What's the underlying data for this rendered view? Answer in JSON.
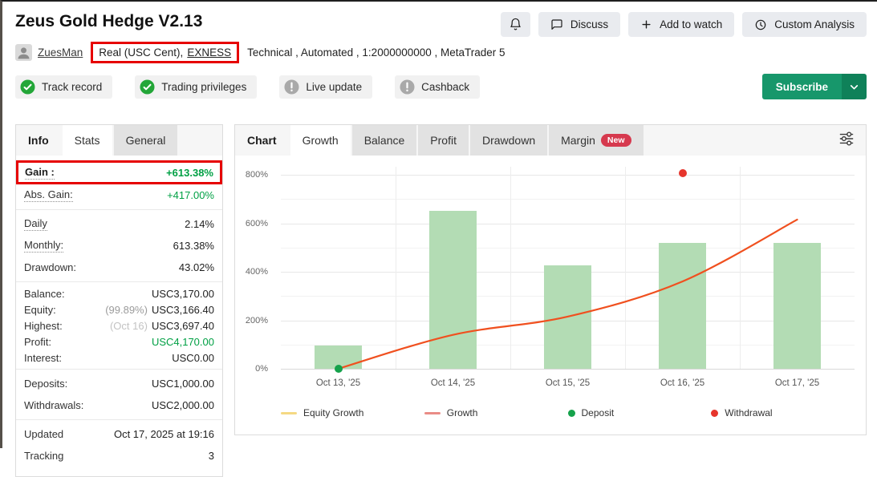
{
  "colors": {
    "positive": "#00a044",
    "highlight_red": "#e60000",
    "bar_fill": "#b3dcb4",
    "line_growth": "#f0501f",
    "legend_equity": "#f5d983",
    "legend_growth": "#e98c86",
    "deposit_dot": "#15a24b",
    "withdrawal_dot": "#e6352c",
    "badge_ok": "#23a638",
    "badge_na": "#a9a9a9",
    "subscribe_green": "#17976b",
    "subscribe_dark": "#0f8159"
  },
  "header": {
    "title": "Zeus Gold Hedge V2.13",
    "buttons": [
      {
        "label": "Discuss",
        "icon": "chat-bubble"
      },
      {
        "label": "Add to watch",
        "icon": "plus"
      },
      {
        "label": "Custom Analysis",
        "icon": "clock"
      }
    ],
    "user_name": "ZuesMan",
    "account_type": "Real (USC Cent),",
    "broker": "EXNESS",
    "meta_line": "Technical , Automated , 1:2000000000 , MetaTrader 5",
    "badges": [
      {
        "label": "Track record",
        "status": "verified"
      },
      {
        "label": "Trading privileges",
        "status": "verified"
      },
      {
        "label": "Live update",
        "status": "unavailable"
      },
      {
        "label": "Cashback",
        "status": "unavailable"
      }
    ],
    "subscribe": {
      "label": "Subscribe"
    }
  },
  "sidebar": {
    "tabs": [
      {
        "label": "Info",
        "style": "title"
      },
      {
        "label": "Stats",
        "active": true
      },
      {
        "label": "General",
        "active": false
      }
    ],
    "groups": [
      {
        "rows": [
          {
            "label": "Gain :",
            "value": "+613.38%",
            "bold": true,
            "dotted": true,
            "value_class": "pos-bold",
            "highlight": true
          },
          {
            "label": "Abs. Gain:",
            "value": "+417.00%",
            "dotted": true,
            "value_class": "pos"
          }
        ]
      },
      {
        "rows": [
          {
            "label": "Daily",
            "value": "2.14%",
            "dotted": true
          },
          {
            "label": "Monthly:",
            "value": "613.38%",
            "dotted": true
          },
          {
            "label": "Drawdown:",
            "value": "43.02%"
          }
        ]
      },
      {
        "compact": true,
        "rows": [
          {
            "label": "Balance:",
            "value": "USC3,170.00"
          },
          {
            "label": "Equity:",
            "prefix": "(99.89%)",
            "value": "USC3,166.40"
          },
          {
            "label": "Highest:",
            "prefix": "(Oct 16)",
            "prefix_light": true,
            "value": "USC3,697.40"
          },
          {
            "label": "Profit:",
            "value": "USC4,170.00",
            "value_class": "pos"
          },
          {
            "label": "Interest:",
            "value": "USC0.00"
          }
        ]
      },
      {
        "rows": [
          {
            "label": "Deposits:",
            "value": "USC1,000.00"
          },
          {
            "label": "Withdrawals:",
            "value": "USC2,000.00"
          }
        ]
      },
      {
        "rows": [
          {
            "label": "Updated",
            "value": "Oct 17, 2025 at 19:16"
          },
          {
            "label": "Tracking",
            "value": "3"
          }
        ]
      }
    ]
  },
  "chart_panel": {
    "tabs": [
      {
        "label": "Chart",
        "style": "title"
      },
      {
        "label": "Growth",
        "active": true
      },
      {
        "label": "Balance"
      },
      {
        "label": "Profit"
      },
      {
        "label": "Drawdown"
      },
      {
        "label": "Margin",
        "badge": "New"
      }
    ]
  },
  "chart_data": {
    "type": "bar+line",
    "title": "",
    "xlabel": "",
    "ylabel": "",
    "categories": [
      "Oct 13, '25",
      "Oct 14, '25",
      "Oct 15, '25",
      "Oct 16, '25",
      "Oct 17, '25"
    ],
    "bar_series": {
      "values": [
        95,
        650,
        425,
        520,
        520
      ],
      "color_key": "bar_fill"
    },
    "line_series": {
      "name": "Growth",
      "values": [
        0,
        140,
        215,
        360,
        615
      ],
      "color_key": "line_growth"
    },
    "markers": {
      "deposits": [
        {
          "category": "Oct 13, '25",
          "value": 0
        }
      ],
      "withdrawals": [
        {
          "category": "Oct 16, '25",
          "value": 805
        }
      ]
    },
    "ylim": [
      0,
      800
    ],
    "yticks": [
      0,
      200,
      400,
      600,
      800
    ],
    "ytick_labels": [
      "0%",
      "200%",
      "400%",
      "600%",
      "800%"
    ],
    "grid": true,
    "legend_position": "bottom",
    "legend": [
      {
        "label": "Equity Growth",
        "marker": "line",
        "color_key": "legend_equity"
      },
      {
        "label": "Growth",
        "marker": "line",
        "color_key": "legend_growth"
      },
      {
        "label": "Deposit",
        "marker": "dot",
        "color_key": "deposit_dot"
      },
      {
        "label": "Withdrawal",
        "marker": "dot",
        "color_key": "withdrawal_dot"
      }
    ]
  }
}
